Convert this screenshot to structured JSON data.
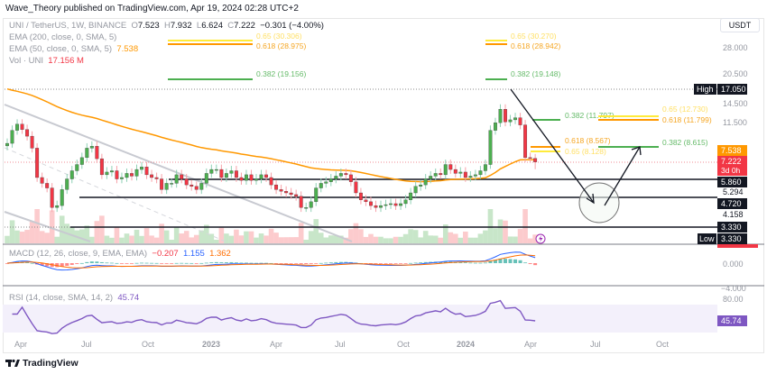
{
  "header": {
    "published": "Wave_Theory published on TradingView.com, Apr 19, 2024 02:28 UTC+2"
  },
  "legend": {
    "symbol": "UNI / TetherUS, 1W, BINANCE",
    "o_label": "O",
    "o": "7.523",
    "h_label": "H",
    "h": "7.932",
    "l_label": "L",
    "l": "6.624",
    "c_label": "C",
    "c": "7.222",
    "change": "−0.301 (−4.00%)",
    "ema200": "EMA (200, close, 0, SMA, 5)",
    "ema50": "EMA (50, close, 0, SMA, 5)",
    "ema50_value": "7.538",
    "vol": "Vol · UNI",
    "vol_value": "17.156 M",
    "macd": "MACD (12, 26, close, 9, EMA, EMA)",
    "macd_hist": "−0.207",
    "macd_line": "1.155",
    "macd_signal": "1.362",
    "rsi": "RSI (14, close, SMA, 14, 2)",
    "rsi_value": "45.74"
  },
  "currency": "USDT",
  "price_axis": [
    "28.000",
    "20.500",
    "14.500",
    "11.500",
    "5.294",
    "4.158"
  ],
  "price_tags": {
    "high_label": "High",
    "high": "17.050",
    "ema50": "7.538",
    "last": "7.222",
    "countdown": "3d 0h",
    "s1": "5.860",
    "s2": "4.720",
    "s3": "3.330",
    "low_label": "Low",
    "low": "3.330",
    "macd_zero": "0.000",
    "macd_neg": "−4.000",
    "rsi_top": "80.00",
    "rsi": "45.74"
  },
  "fib_labels": {
    "a_065": "0.65 (30.306)",
    "a_0618": "0.618 (28.975)",
    "a_0382": "0.382 (19.156)",
    "b_065": "0.65 (30.270)",
    "b_0618": "0.618 (28.942)",
    "b_0382": "0.382 (19.148)",
    "c_0382": "0.382 (11.797)",
    "c_0618": "0.618 (8.567)",
    "c_065": "0.65 (8.128)",
    "d_065": "0.65 (12.730)",
    "d_0618": "0.618 (11.799)",
    "d_0382": "0.382 (8.615)"
  },
  "time_axis": [
    "Apr",
    "Jul",
    "Oct",
    "2023",
    "Apr",
    "Jul",
    "Oct",
    "2024",
    "Apr",
    "Jul",
    "Oct"
  ],
  "footer": {
    "brand": "TradingView"
  },
  "colors": {
    "up": "#4caf50",
    "down": "#f23645",
    "ema50": "#ff9800",
    "rsi": "#7e57c2",
    "macd": "#2962ff",
    "signal": "#ff6d00"
  },
  "chart_data": {
    "type": "candlestick",
    "title": "UNI / TetherUS, 1W, BINANCE",
    "scale": "log",
    "ylim": [
      3.0,
      32.0
    ],
    "x_start": "2022-04",
    "closes": [
      9.0,
      10.5,
      11.3,
      10.6,
      9.8,
      8.5,
      6.0,
      5.6,
      5.3,
      4.2,
      4.3,
      5.2,
      5.9,
      6.5,
      7.0,
      7.6,
      8.5,
      8.7,
      7.5,
      6.2,
      6.4,
      6.5,
      5.9,
      6.0,
      6.3,
      6.1,
      6.6,
      6.8,
      6.2,
      6.0,
      5.9,
      5.2,
      5.6,
      5.6,
      6.2,
      5.9,
      5.5,
      5.4,
      5.2,
      5.6,
      6.3,
      6.6,
      6.6,
      6.0,
      6.3,
      6.5,
      6.0,
      5.8,
      6.2,
      5.8,
      5.9,
      6.2,
      6.0,
      5.5,
      5.2,
      5.1,
      5.0,
      4.9,
      4.8,
      4.2,
      4.2,
      4.5,
      5.3,
      5.6,
      5.7,
      5.9,
      6.1,
      6.3,
      6.2,
      5.7,
      5.0,
      4.6,
      4.5,
      4.3,
      4.2,
      4.3,
      4.35,
      4.4,
      4.3,
      4.4,
      4.6,
      5.0,
      5.4,
      5.5,
      5.9,
      6.1,
      6.3,
      6.2,
      7.0,
      6.6,
      6.3,
      6.4,
      6.0,
      6.1,
      6.2,
      6.5,
      7.0,
      10.5,
      11.5,
      13.5,
      11.6,
      11.9,
      12.2,
      11.2,
      7.6,
      7.523,
      7.222
    ],
    "last_candle": {
      "open": 7.523,
      "high": 7.932,
      "low": 6.624,
      "close": 7.222
    },
    "horizontal_levels": [
      17.05,
      5.86,
      4.72,
      3.33
    ],
    "ema50_last": 7.538,
    "macd_last": {
      "hist": -0.207,
      "macd": 1.155,
      "signal": 1.362
    },
    "rsi_last": 45.74
  }
}
